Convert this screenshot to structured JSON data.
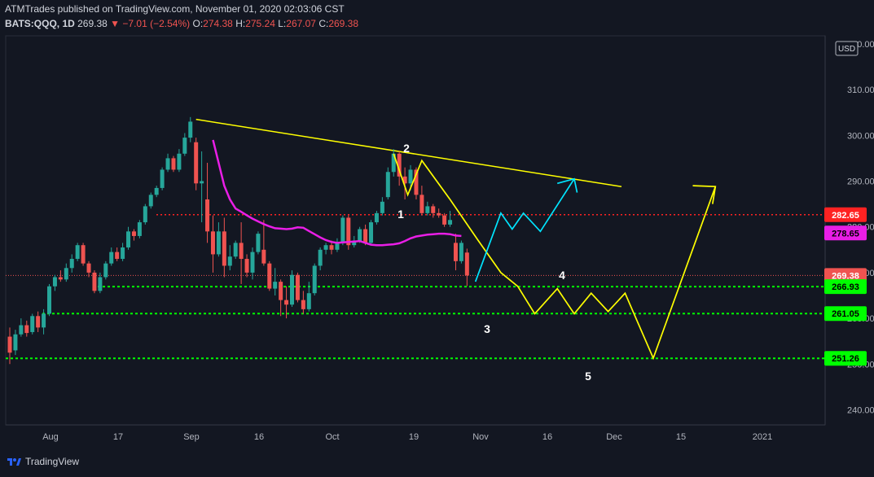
{
  "header": {
    "publisher": "ATMTrades published on TradingView.com, November 01, 2020 02:03:06 CST",
    "symbol": "BATS:QQQ, 1D",
    "last": "269.38",
    "change": "−7.01 (−2.54%)",
    "o_label": "O:",
    "o": "274.38",
    "h_label": "H:",
    "h": "275.24",
    "l_label": "L:",
    "l": "267.07",
    "c_label": "C:",
    "c": "269.38"
  },
  "currency": "USD",
  "brand": "TradingView",
  "colors": {
    "background": "#131722",
    "up": "#26a69a",
    "down": "#ef5350",
    "ma": "#e91ee6",
    "forecast": "#ffff00",
    "alt_path": "#00e5ff",
    "support": "#00ff00",
    "resistance": "#ff2222"
  },
  "chart_data": {
    "type": "candlestick",
    "x_ticks": [
      "Aug",
      "17",
      "Sep",
      "16",
      "Oct",
      "19",
      "Nov",
      "16",
      "Dec",
      "15",
      "2021"
    ],
    "y_ticks": [
      240,
      250,
      260,
      270,
      280,
      290,
      300,
      310,
      320
    ],
    "ylim": [
      236,
      321
    ],
    "candles": [
      [
        256.0,
        252.5,
        250.0,
        258.0
      ],
      [
        253.0,
        256.5,
        252.0,
        257.5
      ],
      [
        256.5,
        258.5,
        256.0,
        260.0
      ],
      [
        258.5,
        256.8,
        256.0,
        259.5
      ],
      [
        257.0,
        260.5,
        256.5,
        261.0
      ],
      [
        260.5,
        258.0,
        257.0,
        261.5
      ],
      [
        258.0,
        261.0,
        256.5,
        262.0
      ],
      [
        261.0,
        267.0,
        260.5,
        267.5
      ],
      [
        267.0,
        269.0,
        266.0,
        269.5
      ],
      [
        269.0,
        268.5,
        268.0,
        270.5
      ],
      [
        268.5,
        271.0,
        268.0,
        272.0
      ],
      [
        271.0,
        273.0,
        270.0,
        274.0
      ],
      [
        273.0,
        276.0,
        272.5,
        276.5
      ],
      [
        276.0,
        272.0,
        271.5,
        276.5
      ],
      [
        272.0,
        270.0,
        269.0,
        272.5
      ],
      [
        270.0,
        266.0,
        265.5,
        270.5
      ],
      [
        266.0,
        269.0,
        265.5,
        270.0
      ],
      [
        269.0,
        272.0,
        268.5,
        272.5
      ],
      [
        272.0,
        274.5,
        271.5,
        275.5
      ],
      [
        274.5,
        273.0,
        272.5,
        275.5
      ],
      [
        273.0,
        275.5,
        272.5,
        276.5
      ],
      [
        275.5,
        279.0,
        275.0,
        280.0
      ],
      [
        279.0,
        278.0,
        277.0,
        279.5
      ],
      [
        278.0,
        281.0,
        277.5,
        281.5
      ],
      [
        281.0,
        284.5,
        280.5,
        285.0
      ],
      [
        284.5,
        287.0,
        284.0,
        287.5
      ],
      [
        287.0,
        288.5,
        286.5,
        289.0
      ],
      [
        288.5,
        292.5,
        288.0,
        293.0
      ],
      [
        292.5,
        295.0,
        292.0,
        296.0
      ],
      [
        295.0,
        292.5,
        292.0,
        295.5
      ],
      [
        292.5,
        296.0,
        292.0,
        297.0
      ],
      [
        296.0,
        299.5,
        295.5,
        300.5
      ],
      [
        299.5,
        303.0,
        298.5,
        304.0
      ],
      [
        298.5,
        289.5,
        288.0,
        299.5
      ],
      [
        289.5,
        290.0,
        281.0,
        296.5
      ],
      [
        286.0,
        279.0,
        276.5,
        294.0
      ],
      [
        279.0,
        274.0,
        270.0,
        282.5
      ],
      [
        274.0,
        279.0,
        273.5,
        281.0
      ],
      [
        279.0,
        271.5,
        269.0,
        282.0
      ],
      [
        271.5,
        273.5,
        270.5,
        276.0
      ],
      [
        273.5,
        276.5,
        273.0,
        277.0
      ],
      [
        276.5,
        273.0,
        267.5,
        281.0
      ],
      [
        273.0,
        270.0,
        269.0,
        274.0
      ],
      [
        270.0,
        274.5,
        268.5,
        275.5
      ],
      [
        274.5,
        278.5,
        274.0,
        279.0
      ],
      [
        275.0,
        272.0,
        271.5,
        281.5
      ],
      [
        272.0,
        266.5,
        266.0,
        272.5
      ],
      [
        266.5,
        268.0,
        265.0,
        271.0
      ],
      [
        268.0,
        264.0,
        260.5,
        268.5
      ],
      [
        264.0,
        263.0,
        260.0,
        267.0
      ],
      [
        263.0,
        269.5,
        262.5,
        270.5
      ],
      [
        269.5,
        264.0,
        263.5,
        270.0
      ],
      [
        264.0,
        262.0,
        261.0,
        266.0
      ],
      [
        262.0,
        265.5,
        261.5,
        268.0
      ],
      [
        265.5,
        271.5,
        265.0,
        272.0
      ],
      [
        271.5,
        275.0,
        270.5,
        275.5
      ],
      [
        275.0,
        276.0,
        274.0,
        276.5
      ],
      [
        276.0,
        275.0,
        274.0,
        277.0
      ],
      [
        275.0,
        276.5,
        274.5,
        277.5
      ],
      [
        276.5,
        282.0,
        276.0,
        282.5
      ],
      [
        282.0,
        276.0,
        275.0,
        282.5
      ],
      [
        276.0,
        277.0,
        275.5,
        278.0
      ],
      [
        277.0,
        279.5,
        276.5,
        280.0
      ],
      [
        279.5,
        276.5,
        276.0,
        280.5
      ],
      [
        276.5,
        281.0,
        276.0,
        281.5
      ],
      [
        281.0,
        283.0,
        280.5,
        283.5
      ],
      [
        283.0,
        285.5,
        282.5,
        286.5
      ],
      [
        286.5,
        292.0,
        286.0,
        293.0
      ],
      [
        292.0,
        296.0,
        291.0,
        297.0
      ],
      [
        296.0,
        291.0,
        289.0,
        296.5
      ],
      [
        291.0,
        289.5,
        286.0,
        293.0
      ],
      [
        289.5,
        292.5,
        288.0,
        293.5
      ],
      [
        292.5,
        287.0,
        286.0,
        293.0
      ],
      [
        287.0,
        283.0,
        282.5,
        289.0
      ],
      [
        283.0,
        284.5,
        282.5,
        285.5
      ],
      [
        284.5,
        283.0,
        282.0,
        285.0
      ],
      [
        283.0,
        282.5,
        282.0,
        284.0
      ],
      [
        282.5,
        280.5,
        280.0,
        283.0
      ],
      [
        280.5,
        281.5,
        280.0,
        283.5
      ],
      [
        276.5,
        272.5,
        270.5,
        278.5
      ],
      [
        272.5,
        276.5,
        272.0,
        277.0
      ],
      [
        274.38,
        269.38,
        267.07,
        275.24
      ]
    ],
    "moving_average": [
      299,
      294,
      289,
      286,
      284,
      283.3,
      282.5,
      281.8,
      281.2,
      280.6,
      280.1,
      279.7,
      279.6,
      279.5,
      279.6,
      279.9,
      279.8,
      279.1,
      278.4,
      277.7,
      277.1,
      276.7,
      276.5,
      276.6,
      276.7,
      276.8,
      276.9,
      276.5,
      276.1,
      276,
      276,
      276.1,
      276.2,
      276.4,
      276.9,
      277.5,
      277.9,
      278.1,
      278.3,
      278.4,
      278.5,
      278.5,
      278.4,
      278.1,
      278.0
    ],
    "moving_average_start_index": 36,
    "levels": [
      {
        "value": 282.65,
        "label": "282.65",
        "kind": "resistance"
      },
      {
        "value": 269.38,
        "label": "269.38",
        "kind": "last_price"
      },
      {
        "value": 266.93,
        "label": "266.93",
        "kind": "support"
      },
      {
        "value": 261.05,
        "label": "261.05",
        "kind": "support"
      },
      {
        "value": 251.26,
        "label": "251.26",
        "kind": "support"
      }
    ],
    "ma_label": "278.65",
    "trendline": [
      [
        303.5,
        288.8
      ]
    ],
    "wave_labels": [
      "1",
      "2",
      "3",
      "4",
      "5"
    ]
  }
}
